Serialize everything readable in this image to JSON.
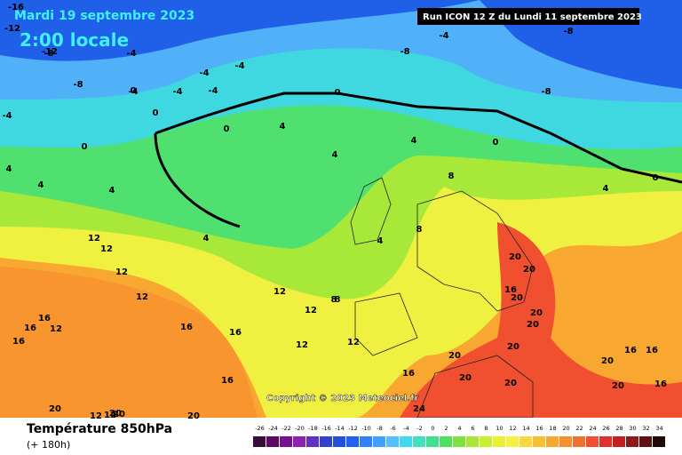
{
  "header": {
    "date": "Mardi 19 septembre 2023",
    "time": "2:00 locale",
    "run": "Run ICON 12 Z du Lundi 11 septembre 2023"
  },
  "copyright": "Copyright © 2023 Meteociel.fr",
  "footer": {
    "title": "Température 850hPa",
    "lead": "(+ 180h)"
  },
  "legend": {
    "ticks": [
      -26,
      -24,
      -22,
      -20,
      -18,
      -16,
      -14,
      -12,
      -10,
      -8,
      -6,
      -4,
      -2,
      0,
      2,
      4,
      6,
      8,
      10,
      12,
      14,
      16,
      18,
      20,
      22,
      24,
      26,
      28,
      30,
      32,
      34
    ],
    "colors": [
      "#3a0a3a",
      "#5a0a60",
      "#7a1090",
      "#9020b0",
      "#6030c0",
      "#3040d0",
      "#2050e0",
      "#2060f0",
      "#3080ff",
      "#40a0ff",
      "#50c0ff",
      "#40d8f0",
      "#40e0c0",
      "#40e090",
      "#50e060",
      "#80e040",
      "#a8e830",
      "#c8f030",
      "#e8f030",
      "#f8f040",
      "#f8d840",
      "#f8c030",
      "#f8a830",
      "#f89030",
      "#f07030",
      "#f05030",
      "#e03030",
      "#c02020",
      "#901818",
      "#601010",
      "#200808"
    ]
  },
  "contour_labels": [
    -16,
    -12,
    -12,
    -8,
    -4,
    -4,
    -8,
    -4,
    0,
    0,
    -4,
    0,
    -4,
    -4,
    -4,
    0,
    -4,
    0,
    4,
    4,
    4,
    4,
    -8,
    -8,
    4,
    -8,
    8,
    0,
    0,
    4,
    8,
    8,
    4,
    4,
    4,
    12,
    12,
    12,
    12,
    12,
    8,
    12,
    12,
    12,
    16,
    16,
    16,
    16,
    12,
    16,
    20,
    20,
    20,
    16,
    20,
    20,
    20,
    20,
    16,
    20,
    20,
    16,
    16,
    20,
    20,
    16,
    24,
    20,
    20,
    12,
    12,
    20,
    20,
    16
  ]
}
